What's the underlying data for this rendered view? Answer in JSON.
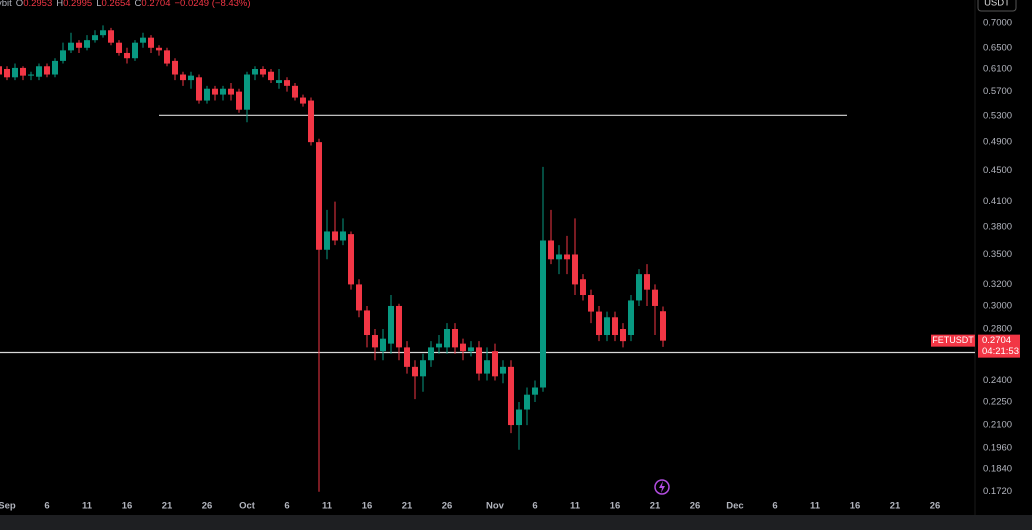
{
  "chart_data": {
    "type": "candlestick",
    "header": {
      "source": "ybit",
      "labels": [
        "O",
        "H",
        "L",
        "C"
      ],
      "change": "−0.0249 (−8.43%)"
    },
    "currency": "USDT",
    "symbol": "FETUSDT",
    "countdown": "04:21:53",
    "log_scale": true,
    "grid": false,
    "up_color": "#089981",
    "down_color": "#f23645",
    "xlim": [
      -0.875,
      121
    ],
    "ylim": [
      0.1693,
      0.75
    ],
    "xticks": [
      {
        "value": 0,
        "label": "Sep"
      },
      {
        "value": 5,
        "label": "6"
      },
      {
        "value": 10,
        "label": "11"
      },
      {
        "value": 15,
        "label": "16"
      },
      {
        "value": 20,
        "label": "21"
      },
      {
        "value": 25,
        "label": "26"
      },
      {
        "value": 30,
        "label": "Oct"
      },
      {
        "value": 35,
        "label": "6"
      },
      {
        "value": 40,
        "label": "11"
      },
      {
        "value": 45,
        "label": "16"
      },
      {
        "value": 50,
        "label": "21"
      },
      {
        "value": 55,
        "label": "26"
      },
      {
        "value": 61,
        "label": "Nov"
      },
      {
        "value": 66,
        "label": "6"
      },
      {
        "value": 71,
        "label": "11"
      },
      {
        "value": 76,
        "label": "16"
      },
      {
        "value": 81,
        "label": "21"
      },
      {
        "value": 86,
        "label": "26"
      },
      {
        "value": 91,
        "label": "Dec"
      },
      {
        "value": 96,
        "label": "6"
      },
      {
        "value": 101,
        "label": "11"
      },
      {
        "value": 106,
        "label": "16"
      },
      {
        "value": 111,
        "label": "21"
      },
      {
        "value": 116,
        "label": "26"
      }
    ],
    "yticks": [
      {
        "value": 0.7,
        "label": "0.7000"
      },
      {
        "value": 0.65,
        "label": "0.6500"
      },
      {
        "value": 0.61,
        "label": "0.6100"
      },
      {
        "value": 0.57,
        "label": "0.5700"
      },
      {
        "value": 0.53,
        "label": "0.5300"
      },
      {
        "value": 0.49,
        "label": "0.4900"
      },
      {
        "value": 0.45,
        "label": "0.4500"
      },
      {
        "value": 0.41,
        "label": "0.4100"
      },
      {
        "value": 0.38,
        "label": "0.3800"
      },
      {
        "value": 0.35,
        "label": "0.3500"
      },
      {
        "value": 0.32,
        "label": "0.3200"
      },
      {
        "value": 0.3,
        "label": "0.3000"
      },
      {
        "value": 0.28,
        "label": "0.2800"
      },
      {
        "value": 0.24,
        "label": "0.2400"
      },
      {
        "value": 0.225,
        "label": "0.2250"
      },
      {
        "value": 0.21,
        "label": "0.2100"
      },
      {
        "value": 0.196,
        "label": "0.1960"
      },
      {
        "value": 0.184,
        "label": "0.1840"
      },
      {
        "value": 0.172,
        "label": "0.1720"
      }
    ],
    "levels": [
      {
        "value": 0.531,
        "from": 19,
        "to": 105
      },
      {
        "value": 0.261
      }
    ],
    "candles": {
      "x": [
        -1,
        0,
        1,
        2,
        3,
        4,
        5,
        6,
        7,
        8,
        9,
        10,
        11,
        12,
        13,
        14,
        15,
        16,
        17,
        18,
        19,
        20,
        21,
        22,
        23,
        24,
        25,
        26,
        27,
        28,
        29,
        30,
        31,
        32,
        33,
        34,
        35,
        36,
        37,
        38,
        39,
        40,
        41,
        42,
        43,
        44,
        45,
        46,
        47,
        48,
        49,
        50,
        51,
        52,
        53,
        54,
        55,
        56,
        57,
        58,
        59,
        60,
        61,
        62,
        63,
        64,
        65,
        66,
        67,
        68,
        69,
        70,
        71,
        72,
        73,
        74,
        75,
        76,
        77,
        78,
        79,
        80,
        81,
        82
      ],
      "open": [
        0.615,
        0.61,
        0.595,
        0.612,
        0.598,
        0.596,
        0.615,
        0.6,
        0.625,
        0.645,
        0.66,
        0.65,
        0.665,
        0.675,
        0.685,
        0.66,
        0.64,
        0.63,
        0.66,
        0.67,
        0.65,
        0.645,
        0.625,
        0.6,
        0.59,
        0.595,
        0.555,
        0.575,
        0.565,
        0.575,
        0.57,
        0.54,
        0.6,
        0.61,
        0.605,
        0.585,
        0.59,
        0.58,
        0.56,
        0.555,
        0.49,
        0.355,
        0.375,
        0.365,
        0.372,
        0.32,
        0.296,
        0.275,
        0.262,
        0.268,
        0.3,
        0.265,
        0.25,
        0.243,
        0.255,
        0.265,
        0.265,
        0.28,
        0.268,
        0.262,
        0.265,
        0.245,
        0.262,
        0.245,
        0.25,
        0.21,
        0.22,
        0.23,
        0.235,
        0.365,
        0.345,
        0.35,
        0.35,
        0.325,
        0.31,
        0.295,
        0.275,
        0.29,
        0.28,
        0.275,
        0.305,
        0.33,
        0.315,
        0.2953
      ],
      "high": [
        0.62,
        0.615,
        0.62,
        0.615,
        0.605,
        0.62,
        0.62,
        0.63,
        0.66,
        0.68,
        0.665,
        0.675,
        0.685,
        0.695,
        0.69,
        0.665,
        0.65,
        0.665,
        0.68,
        0.675,
        0.655,
        0.65,
        0.63,
        0.605,
        0.605,
        0.6,
        0.58,
        0.58,
        0.58,
        0.585,
        0.575,
        0.605,
        0.615,
        0.615,
        0.61,
        0.61,
        0.595,
        0.585,
        0.565,
        0.56,
        0.495,
        0.4,
        0.41,
        0.39,
        0.375,
        0.325,
        0.3,
        0.28,
        0.28,
        0.31,
        0.302,
        0.27,
        0.255,
        0.26,
        0.27,
        0.275,
        0.285,
        0.285,
        0.272,
        0.27,
        0.27,
        0.265,
        0.268,
        0.255,
        0.255,
        0.225,
        0.235,
        0.24,
        0.455,
        0.4,
        0.36,
        0.37,
        0.39,
        0.33,
        0.315,
        0.3,
        0.295,
        0.295,
        0.285,
        0.31,
        0.335,
        0.34,
        0.32,
        0.2995
      ],
      "low": [
        0.58,
        0.59,
        0.59,
        0.59,
        0.59,
        0.59,
        0.595,
        0.595,
        0.62,
        0.64,
        0.64,
        0.645,
        0.66,
        0.67,
        0.655,
        0.635,
        0.62,
        0.625,
        0.65,
        0.64,
        0.635,
        0.615,
        0.59,
        0.58,
        0.575,
        0.55,
        0.55,
        0.555,
        0.555,
        0.555,
        0.535,
        0.52,
        0.59,
        0.595,
        0.585,
        0.575,
        0.57,
        0.555,
        0.545,
        0.485,
        0.172,
        0.345,
        0.36,
        0.36,
        0.315,
        0.29,
        0.265,
        0.255,
        0.255,
        0.26,
        0.255,
        0.245,
        0.227,
        0.232,
        0.25,
        0.26,
        0.26,
        0.26,
        0.255,
        0.258,
        0.24,
        0.24,
        0.24,
        0.238,
        0.205,
        0.195,
        0.21,
        0.225,
        0.232,
        0.34,
        0.33,
        0.33,
        0.31,
        0.305,
        0.285,
        0.27,
        0.27,
        0.27,
        0.265,
        0.27,
        0.3,
        0.3,
        0.275,
        0.2654
      ],
      "close": [
        0.6,
        0.595,
        0.612,
        0.598,
        0.6,
        0.615,
        0.6,
        0.625,
        0.645,
        0.66,
        0.65,
        0.665,
        0.675,
        0.685,
        0.66,
        0.64,
        0.63,
        0.66,
        0.67,
        0.65,
        0.645,
        0.62,
        0.6,
        0.59,
        0.598,
        0.555,
        0.575,
        0.565,
        0.575,
        0.565,
        0.54,
        0.6,
        0.61,
        0.6,
        0.59,
        0.59,
        0.58,
        0.56,
        0.55,
        0.49,
        0.355,
        0.375,
        0.365,
        0.375,
        0.32,
        0.296,
        0.275,
        0.265,
        0.272,
        0.3,
        0.265,
        0.25,
        0.243,
        0.255,
        0.265,
        0.268,
        0.28,
        0.265,
        0.262,
        0.265,
        0.245,
        0.255,
        0.243,
        0.25,
        0.21,
        0.22,
        0.23,
        0.235,
        0.365,
        0.345,
        0.35,
        0.345,
        0.32,
        0.31,
        0.295,
        0.275,
        0.29,
        0.275,
        0.27,
        0.305,
        0.33,
        0.315,
        0.3,
        0.2704
      ]
    }
  }
}
